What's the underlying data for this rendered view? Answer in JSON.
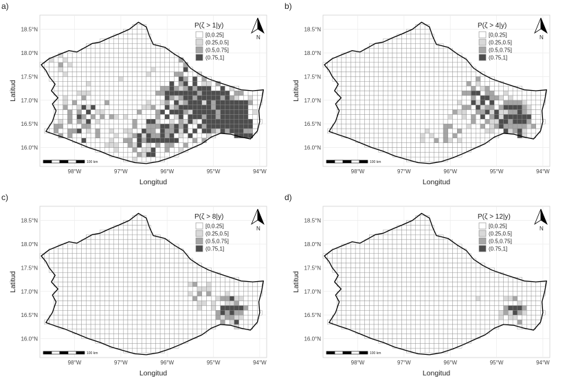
{
  "panels": [
    {
      "tag": "a)",
      "legend_title": "P(ζ > 1|y)"
    },
    {
      "tag": "b)",
      "legend_title": "P(ζ > 4|y)"
    },
    {
      "tag": "c)",
      "legend_title": "P(ζ > 8|y)"
    },
    {
      "tag": "d)",
      "legend_title": "P(ζ > 12|y)"
    }
  ],
  "legend_items": [
    {
      "label": "[0,0.25]",
      "color": "#ffffff"
    },
    {
      "label": "(0.25,0.5]",
      "color": "#d9d9d9"
    },
    {
      "label": "(0.5,0.75]",
      "color": "#a6a6a6"
    },
    {
      "label": "(0.75,1]",
      "color": "#4d4d4d"
    }
  ],
  "axes": {
    "xlabel": "Longitud",
    "ylabel": "Latitud",
    "x_ticks": [
      "98°W",
      "97°W",
      "96°W",
      "95°W",
      "94°W"
    ],
    "y_ticks": [
      "18.5°N",
      "18.0°N",
      "17.5°N",
      "17.0°N",
      "16.5°N",
      "16.0°N"
    ]
  },
  "north_arrow": {
    "label": "N",
    "icon": "north-arrow-icon"
  },
  "scale_bar": {
    "label": "100 km"
  }
}
